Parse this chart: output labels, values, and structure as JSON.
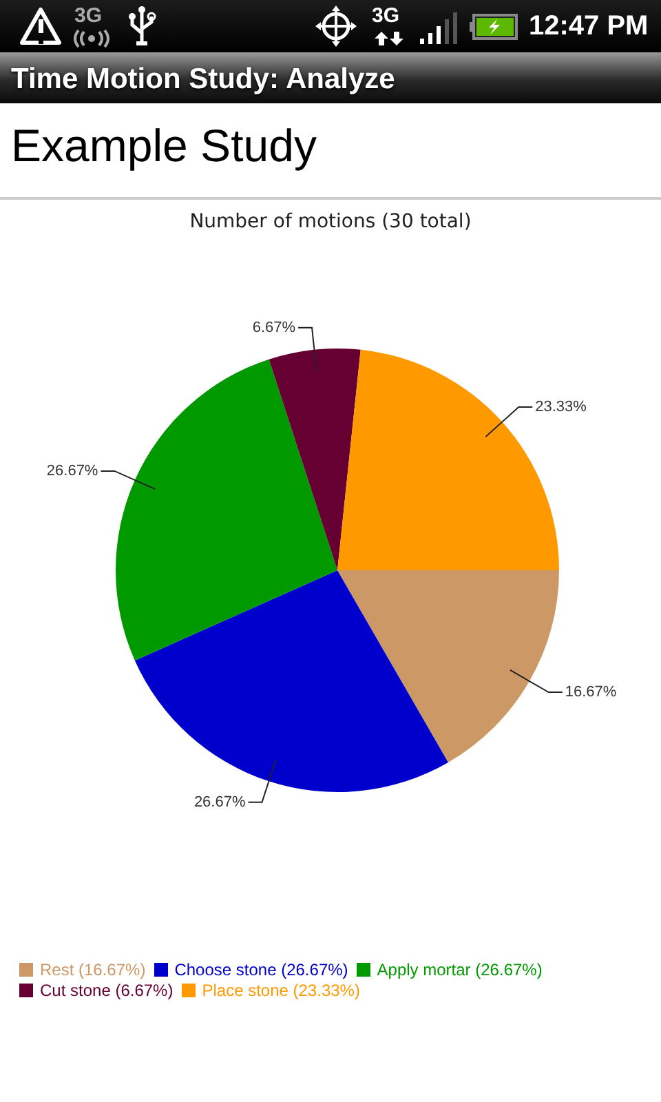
{
  "chart_data": {
    "type": "pie",
    "title": "Number of motions (30 total)",
    "categories": [
      "Rest (16.67%)",
      "Choose stone (26.67%)",
      "Apply mortar (26.67%)",
      "Cut stone (6.67%)",
      "Place stone (23.33%)"
    ],
    "values": [
      16.67,
      26.67,
      26.67,
      6.67,
      23.33
    ],
    "colors": [
      "#cc9966",
      "#0000cc",
      "#009900",
      "#660033",
      "#ff9900"
    ],
    "value_labels": [
      "16.67%",
      "26.67%",
      "26.67%",
      "6.67%",
      "23.33%"
    ],
    "legend": "bottom left",
    "annotations": [
      "Time Motion Study: Analyze",
      "Example Study",
      "12:47 PM",
      "3G",
      "3G"
    ]
  }
}
